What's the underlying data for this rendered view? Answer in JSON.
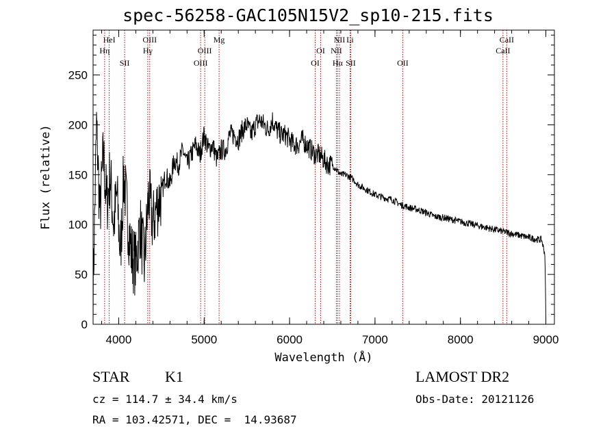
{
  "header": {
    "title": "spec-56258-GAC105N15V2_sp10-215.fits"
  },
  "chart_data": {
    "type": "line",
    "title": "spec-56258-GAC105N15V2_sp10-215.fits",
    "xlabel": "Wavelength (Å)",
    "ylabel": "Flux (relative)",
    "xlim": [
      3700,
      9100
    ],
    "ylim": [
      0,
      295
    ],
    "x_ticks": [
      "4000",
      "5000",
      "6000",
      "7000",
      "8000",
      "9000"
    ],
    "y_ticks": [
      "0",
      "50",
      "100",
      "150",
      "200",
      "250"
    ],
    "series": [
      {
        "x": [
          3700,
          3740,
          3780,
          3820,
          3860,
          3900,
          3940,
          3980,
          4020,
          4060,
          4100,
          4150,
          4200,
          4250,
          4300,
          4350,
          4400,
          4450,
          4500,
          4550,
          4600,
          4650,
          4700,
          4750,
          4800,
          4850,
          4900,
          4950,
          5000,
          5050,
          5100,
          5150,
          5200,
          5250,
          5300,
          5350,
          5400,
          5450,
          5500,
          5550,
          5600,
          5650,
          5700,
          5750,
          5800,
          5850,
          5900,
          5950,
          6000,
          6050,
          6100,
          6150,
          6200,
          6250,
          6300,
          6350,
          6400,
          6450,
          6500,
          6550,
          6600,
          6650,
          6700,
          6750,
          6800,
          6900,
          7000,
          7100,
          7200,
          7300,
          7400,
          7500,
          7600,
          7700,
          7800,
          7900,
          8000,
          8100,
          8200,
          8300,
          8400,
          8500,
          8600,
          8700,
          8800,
          8900,
          8950,
          8990,
          9000
        ],
        "y": [
          30,
          200,
          110,
          170,
          120,
          150,
          100,
          130,
          70,
          150,
          110,
          70,
          60,
          100,
          60,
          130,
          100,
          120,
          130,
          150,
          140,
          165,
          160,
          175,
          160,
          170,
          180,
          170,
          190,
          175,
          180,
          165,
          175,
          175,
          190,
          190,
          185,
          195,
          200,
          190,
          200,
          205,
          200,
          195,
          205,
          195,
          190,
          190,
          185,
          180,
          180,
          185,
          180,
          175,
          170,
          170,
          165,
          160,
          160,
          155,
          150,
          150,
          148,
          145,
          140,
          135,
          130,
          127,
          125,
          120,
          117,
          115,
          112,
          108,
          107,
          105,
          103,
          101,
          99,
          97,
          95,
          93,
          91,
          89,
          87,
          85,
          85,
          70,
          5
        ]
      }
    ],
    "line_identifications": [
      {
        "label": "HeI",
        "wavelength": 3889,
        "row": 0
      },
      {
        "label": "Hη",
        "wavelength": 3835,
        "row": 1
      },
      {
        "label": "SII",
        "wavelength": 4069,
        "row": 2
      },
      {
        "label": "OIII",
        "wavelength": 4363,
        "row": 0
      },
      {
        "label": "Hγ",
        "wavelength": 4340,
        "row": 1
      },
      {
        "label": "OIII",
        "wavelength": 5007,
        "row": 1
      },
      {
        "label": "OIII",
        "wavelength": 4959,
        "row": 2
      },
      {
        "label": "Mg",
        "wavelength": 5175,
        "row": 0
      },
      {
        "label": "OI",
        "wavelength": 6364,
        "row": 1
      },
      {
        "label": "OI",
        "wavelength": 6300,
        "row": 2
      },
      {
        "label": "NII",
        "wavelength": 6584,
        "row": 0
      },
      {
        "label": "Li",
        "wavelength": 6708,
        "row": 0
      },
      {
        "label": "NII",
        "wavelength": 6548,
        "row": 1
      },
      {
        "label": "Hα",
        "wavelength": 6563,
        "row": 2
      },
      {
        "label": "SII",
        "wavelength": 6716,
        "row": 2
      },
      {
        "label": "OII",
        "wavelength": 7325,
        "row": 2
      },
      {
        "label": "CaII",
        "wavelength": 8542,
        "row": 0
      },
      {
        "label": "CaII",
        "wavelength": 8498,
        "row": 1
      }
    ],
    "colors": {
      "spectrum": "#000000",
      "line_markers": "#b00000",
      "axes": "#000000"
    }
  },
  "info": {
    "class": "STAR",
    "subclass": "K1",
    "survey": "LAMOST DR2",
    "cz": "cz = 114.7 ± 34.4 km/s",
    "obs_date": "Obs-Date: 20121126",
    "coords": "RA = 103.42571, DEC =  14.93687"
  }
}
